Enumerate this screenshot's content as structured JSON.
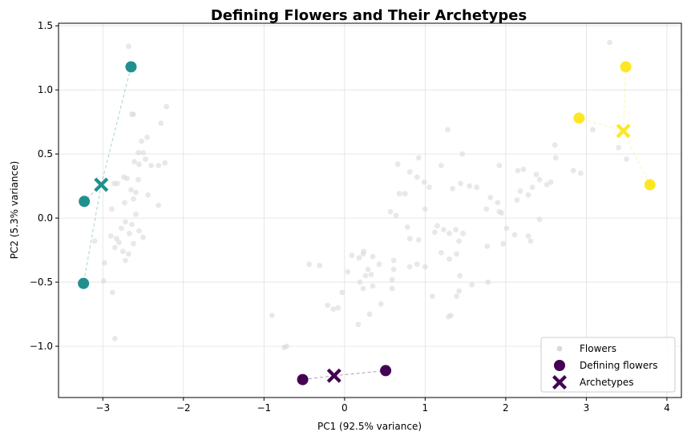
{
  "chart_data": {
    "type": "scatter",
    "title": "Defining Flowers and Their Archetypes",
    "xlabel": "PC1 (92.5% variance)",
    "ylabel": "PC2 (5.3% variance)",
    "xlim": [
      -3.55,
      4.18
    ],
    "ylim": [
      -1.4,
      1.52
    ],
    "xticks": [
      -3,
      -2,
      -1,
      0,
      1,
      2,
      3,
      4
    ],
    "yticks": [
      -1.0,
      -0.5,
      0.0,
      0.5,
      1.0,
      1.5
    ],
    "xtick_labels": [
      "−3",
      "−2",
      "−1",
      "0",
      "1",
      "2",
      "3",
      "4"
    ],
    "ytick_labels": [
      "−1.0",
      "−0.5",
      "0.0",
      "0.5",
      "1.0",
      "1.5"
    ],
    "grid": true,
    "legend_position": "lower-right",
    "legend": [
      {
        "label": "Flowers",
        "marker": "small-circle",
        "color": "#d9d9d9"
      },
      {
        "label": "Defining flowers",
        "marker": "circle",
        "color": "#440154"
      },
      {
        "label": "Archetypes",
        "marker": "x",
        "color": "#440154"
      }
    ],
    "flowers_color": "#d9d9d9",
    "flowers": [
      [
        -2.68,
        1.34
      ],
      [
        -2.65,
        1.18
      ],
      [
        -2.21,
        0.87
      ],
      [
        -2.62,
        0.81
      ],
      [
        -2.64,
        0.81
      ],
      [
        -2.28,
        0.74
      ],
      [
        -2.45,
        0.63
      ],
      [
        -2.52,
        0.6
      ],
      [
        -2.5,
        0.51
      ],
      [
        -2.56,
        0.51
      ],
      [
        -2.47,
        0.46
      ],
      [
        -2.61,
        0.44
      ],
      [
        -2.55,
        0.42
      ],
      [
        -2.4,
        0.41
      ],
      [
        -2.31,
        0.41
      ],
      [
        -2.23,
        0.43
      ],
      [
        -2.74,
        0.32
      ],
      [
        -2.7,
        0.31
      ],
      [
        -2.56,
        0.3
      ],
      [
        -2.82,
        0.27
      ],
      [
        -2.86,
        0.27
      ],
      [
        -2.65,
        0.22
      ],
      [
        -2.59,
        0.2
      ],
      [
        -2.44,
        0.18
      ],
      [
        -2.62,
        0.15
      ],
      [
        -2.73,
        0.12
      ],
      [
        -2.31,
        0.1
      ],
      [
        -2.89,
        0.07
      ],
      [
        -2.59,
        0.03
      ],
      [
        -2.72,
        -0.03
      ],
      [
        -2.64,
        -0.05
      ],
      [
        -2.77,
        -0.08
      ],
      [
        -2.55,
        -0.1
      ],
      [
        -2.67,
        -0.12
      ],
      [
        -2.9,
        -0.14
      ],
      [
        -2.83,
        -0.16
      ],
      [
        -2.8,
        -0.19
      ],
      [
        -2.5,
        -0.15
      ],
      [
        -2.62,
        -0.2
      ],
      [
        -2.75,
        -0.26
      ],
      [
        -2.68,
        -0.28
      ],
      [
        -2.85,
        -0.23
      ],
      [
        -2.72,
        -0.33
      ],
      [
        -2.98,
        -0.35
      ],
      [
        -2.99,
        -0.49
      ],
      [
        -2.88,
        -0.58
      ],
      [
        -2.85,
        -0.94
      ],
      [
        -3.2,
        -0.51
      ],
      [
        -3.1,
        -0.18
      ],
      [
        -3.22,
        0.13
      ],
      [
        3.29,
        1.37
      ],
      [
        3.4,
        0.55
      ],
      [
        3.08,
        0.69
      ],
      [
        3.79,
        0.26
      ],
      [
        3.5,
        0.46
      ],
      [
        2.93,
        0.35
      ],
      [
        2.84,
        0.37
      ],
      [
        2.62,
        0.47
      ],
      [
        2.61,
        0.57
      ],
      [
        2.42,
        0.3
      ],
      [
        2.56,
        0.28
      ],
      [
        2.51,
        0.26
      ],
      [
        2.38,
        0.34
      ],
      [
        2.22,
        0.38
      ],
      [
        2.15,
        0.37
      ],
      [
        2.33,
        0.24
      ],
      [
        2.28,
        0.18
      ],
      [
        2.14,
        0.14
      ],
      [
        2.18,
        0.21
      ],
      [
        1.92,
        0.41
      ],
      [
        1.9,
        0.12
      ],
      [
        1.92,
        0.05
      ],
      [
        1.95,
        0.04
      ],
      [
        2.01,
        -0.08
      ],
      [
        2.11,
        -0.13
      ],
      [
        2.42,
        -0.01
      ],
      [
        2.28,
        -0.14
      ],
      [
        2.31,
        -0.18
      ],
      [
        1.97,
        -0.2
      ],
      [
        1.77,
        -0.22
      ],
      [
        1.76,
        0.07
      ],
      [
        1.81,
        0.16
      ],
      [
        1.64,
        0.24
      ],
      [
        1.55,
        0.25
      ],
      [
        1.44,
        0.27
      ],
      [
        1.34,
        0.23
      ],
      [
        1.46,
        0.5
      ],
      [
        1.28,
        0.69
      ],
      [
        1.2,
        0.41
      ],
      [
        1.05,
        0.24
      ],
      [
        0.99,
        0.28
      ],
      [
        0.92,
        0.47
      ],
      [
        0.9,
        0.32
      ],
      [
        0.81,
        0.36
      ],
      [
        0.66,
        0.42
      ],
      [
        0.75,
        0.19
      ],
      [
        0.68,
        0.19
      ],
      [
        1.0,
        0.07
      ],
      [
        0.57,
        0.05
      ],
      [
        0.64,
        0.02
      ],
      [
        0.81,
        -0.16
      ],
      [
        0.92,
        -0.17
      ],
      [
        1.15,
        -0.06
      ],
      [
        1.23,
        -0.09
      ],
      [
        1.12,
        -0.11
      ],
      [
        1.3,
        -0.12
      ],
      [
        1.38,
        -0.09
      ],
      [
        1.47,
        -0.12
      ],
      [
        1.42,
        -0.18
      ],
      [
        1.3,
        -0.32
      ],
      [
        1.39,
        -0.28
      ],
      [
        1.2,
        -0.27
      ],
      [
        1.0,
        -0.38
      ],
      [
        0.9,
        -0.36
      ],
      [
        0.81,
        -0.38
      ],
      [
        0.61,
        -0.33
      ],
      [
        0.61,
        -0.4
      ],
      [
        0.59,
        -0.48
      ],
      [
        0.43,
        -0.36
      ],
      [
        0.35,
        -0.3
      ],
      [
        0.29,
        -0.4
      ],
      [
        0.23,
        -0.28
      ],
      [
        0.18,
        -0.31
      ],
      [
        0.09,
        -0.29
      ],
      [
        0.04,
        -0.42
      ],
      [
        0.33,
        -0.44
      ],
      [
        0.26,
        -0.45
      ],
      [
        0.19,
        -0.5
      ],
      [
        0.23,
        -0.55
      ],
      [
        0.35,
        -0.53
      ],
      [
        0.59,
        -0.55
      ],
      [
        0.45,
        -0.67
      ],
      [
        0.31,
        -0.75
      ],
      [
        0.17,
        -0.83
      ],
      [
        1.09,
        -0.61
      ],
      [
        1.32,
        -0.76
      ],
      [
        1.29,
        -0.77
      ],
      [
        1.39,
        -0.61
      ],
      [
        1.42,
        -0.57
      ],
      [
        1.43,
        -0.45
      ],
      [
        1.58,
        -0.52
      ],
      [
        1.78,
        -0.5
      ],
      [
        -0.03,
        -0.58
      ],
      [
        -0.08,
        -0.7
      ],
      [
        -0.14,
        -0.71
      ],
      [
        -0.21,
        -0.68
      ],
      [
        -0.31,
        -0.37
      ],
      [
        -0.44,
        -0.36
      ],
      [
        -0.9,
        -0.76
      ],
      [
        -0.72,
        -1.0
      ],
      [
        -0.75,
        -1.01
      ],
      [
        0.24,
        -0.26
      ],
      [
        0.78,
        -0.07
      ]
    ],
    "groups": [
      {
        "color": "#21908d",
        "archetype": [
          -3.02,
          0.26
        ],
        "defining": [
          [
            -2.65,
            1.18
          ],
          [
            -3.23,
            0.13
          ],
          [
            -3.24,
            -0.51
          ]
        ]
      },
      {
        "color": "#fde725",
        "archetype": [
          3.46,
          0.68
        ],
        "defining": [
          [
            3.49,
            1.18
          ],
          [
            2.91,
            0.78
          ],
          [
            3.79,
            0.26
          ]
        ]
      },
      {
        "color": "#440154",
        "archetype": [
          -0.13,
          -1.23
        ],
        "defining": [
          [
            -0.52,
            -1.26
          ],
          [
            0.51,
            -1.19
          ]
        ]
      }
    ]
  }
}
